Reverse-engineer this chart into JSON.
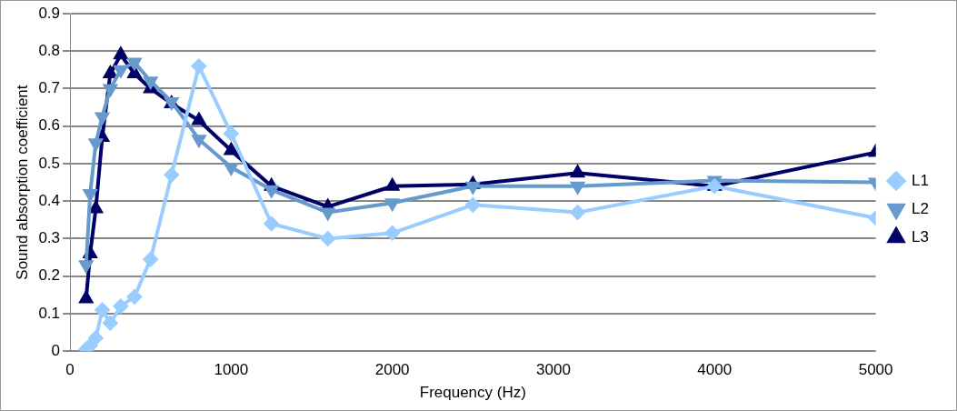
{
  "chart_data": {
    "type": "line",
    "xlabel": "Frequency (Hz)",
    "ylabel": "Sound absorption coefficient",
    "x": [
      100,
      125,
      160,
      200,
      250,
      315,
      400,
      500,
      630,
      800,
      1000,
      1250,
      1600,
      2000,
      2500,
      3150,
      4000,
      5000
    ],
    "series": [
      {
        "name": "L1",
        "color": "#99ccff",
        "marker": "diamond",
        "values": [
          0.005,
          0.015,
          0.035,
          0.11,
          0.075,
          0.12,
          0.145,
          0.245,
          0.47,
          0.76,
          0.58,
          0.34,
          0.3,
          0.315,
          0.39,
          0.37,
          0.44,
          0.355
        ]
      },
      {
        "name": "L2",
        "color": "#6699cc",
        "marker": "triangle-down",
        "values": [
          0.23,
          0.42,
          0.555,
          0.625,
          0.7,
          0.75,
          0.77,
          0.72,
          0.665,
          0.565,
          0.49,
          0.43,
          0.37,
          0.395,
          0.44,
          0.44,
          0.455,
          0.45
        ]
      },
      {
        "name": "L3",
        "color": "#000066",
        "marker": "triangle",
        "values": [
          0.14,
          0.26,
          0.38,
          0.57,
          0.74,
          0.79,
          0.74,
          0.7,
          0.66,
          0.615,
          0.535,
          0.44,
          0.385,
          0.44,
          0.445,
          0.475,
          0.44,
          0.53
        ]
      }
    ],
    "xlim": [
      0,
      5000
    ],
    "xticks": [
      0,
      1000,
      2000,
      3000,
      4000,
      5000
    ],
    "ylim": [
      0,
      0.9
    ],
    "yticks": [
      0,
      0.1,
      0.2,
      0.3,
      0.4,
      0.5,
      0.6,
      0.7,
      0.8,
      0.9
    ],
    "grid": "y",
    "legend": "right",
    "line_style": "solid"
  }
}
